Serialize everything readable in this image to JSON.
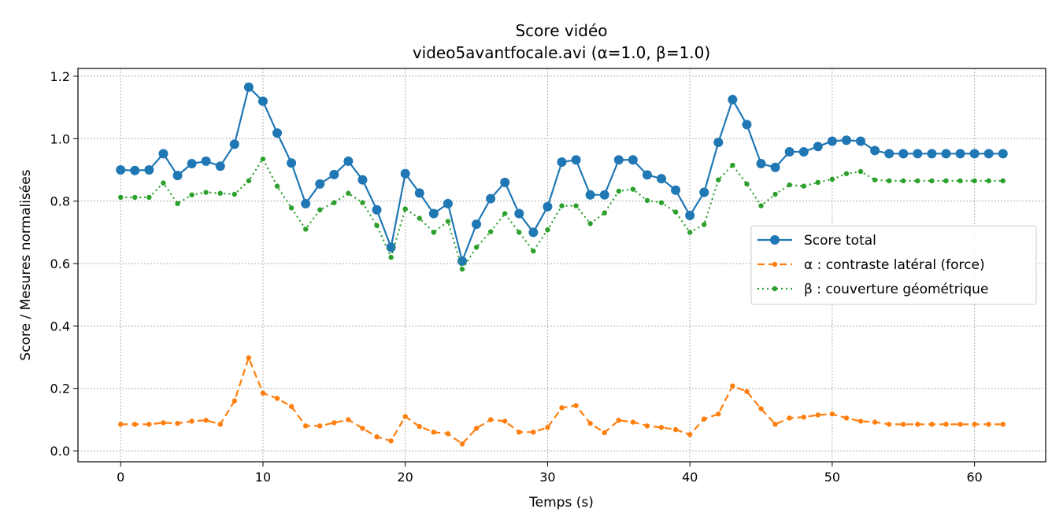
{
  "chart_data": {
    "type": "line",
    "title": "Score vidéo",
    "subtitle": "video5avantfocale.avi (α=1.0, β=1.0)",
    "xlabel": "Temps (s)",
    "ylabel": "Score / Mesures normalisées",
    "xlim": [
      -3,
      65
    ],
    "ylim": [
      -0.035,
      1.225
    ],
    "xticks": [
      0,
      10,
      20,
      30,
      40,
      50,
      60
    ],
    "yticks": [
      0.0,
      0.2,
      0.4,
      0.6,
      0.8,
      1.0,
      1.2
    ],
    "grid": true,
    "legend_position": "center-right",
    "x": [
      0,
      1,
      2,
      3,
      4,
      5,
      6,
      7,
      8,
      9,
      10,
      11,
      12,
      13,
      14,
      15,
      16,
      17,
      18,
      19,
      20,
      21,
      22,
      23,
      24,
      25,
      26,
      27,
      28,
      29,
      30,
      31,
      32,
      33,
      34,
      35,
      36,
      37,
      38,
      39,
      40,
      41,
      42,
      43,
      44,
      45,
      46,
      47,
      48,
      49,
      50,
      51,
      52,
      53,
      54,
      55,
      56,
      57,
      58,
      59,
      60,
      61,
      62
    ],
    "series": [
      {
        "name": "Score total",
        "color": "#1f77b4",
        "style": "solid",
        "marker": "large-circle",
        "values": [
          0.9,
          0.898,
          0.9,
          0.952,
          0.882,
          0.92,
          0.928,
          0.912,
          0.982,
          1.165,
          1.12,
          1.018,
          0.922,
          0.792,
          0.855,
          0.885,
          0.928,
          0.868,
          0.772,
          0.652,
          0.888,
          0.826,
          0.76,
          0.792,
          0.608,
          0.726,
          0.808,
          0.86,
          0.76,
          0.7,
          0.782,
          0.925,
          0.932,
          0.82,
          0.82,
          0.932,
          0.932,
          0.884,
          0.872,
          0.835,
          0.754,
          0.828,
          0.988,
          1.125,
          1.045,
          0.92,
          0.908,
          0.958,
          0.958,
          0.975,
          0.992,
          0.995,
          0.992,
          0.962,
          0.952,
          0.952,
          0.952,
          0.952,
          0.952,
          0.952,
          0.952,
          0.952,
          0.952
        ]
      },
      {
        "name": "α : contraste latéral (force)",
        "color": "#ff7f0e",
        "style": "dashed",
        "marker": "small-dot",
        "values": [
          0.085,
          0.085,
          0.085,
          0.09,
          0.088,
          0.095,
          0.098,
          0.085,
          0.16,
          0.298,
          0.185,
          0.168,
          0.142,
          0.08,
          0.08,
          0.09,
          0.1,
          0.072,
          0.045,
          0.032,
          0.11,
          0.078,
          0.06,
          0.055,
          0.022,
          0.072,
          0.1,
          0.095,
          0.06,
          0.06,
          0.075,
          0.138,
          0.145,
          0.088,
          0.058,
          0.098,
          0.092,
          0.08,
          0.075,
          0.068,
          0.052,
          0.102,
          0.118,
          0.208,
          0.19,
          0.135,
          0.085,
          0.105,
          0.108,
          0.115,
          0.118,
          0.105,
          0.095,
          0.092,
          0.085,
          0.085,
          0.085,
          0.085,
          0.085,
          0.085,
          0.085,
          0.085,
          0.085
        ]
      },
      {
        "name": "β : couverture géométrique",
        "color": "#2ca02c",
        "style": "dotted",
        "marker": "small-dot",
        "values": [
          0.812,
          0.812,
          0.812,
          0.858,
          0.792,
          0.82,
          0.828,
          0.825,
          0.822,
          0.865,
          0.935,
          0.848,
          0.778,
          0.71,
          0.772,
          0.795,
          0.825,
          0.795,
          0.722,
          0.62,
          0.775,
          0.745,
          0.7,
          0.735,
          0.582,
          0.652,
          0.702,
          0.76,
          0.7,
          0.64,
          0.708,
          0.785,
          0.785,
          0.728,
          0.762,
          0.832,
          0.838,
          0.802,
          0.795,
          0.765,
          0.7,
          0.725,
          0.868,
          0.915,
          0.855,
          0.785,
          0.822,
          0.852,
          0.848,
          0.86,
          0.87,
          0.888,
          0.895,
          0.868,
          0.865,
          0.865,
          0.865,
          0.865,
          0.865,
          0.865,
          0.865,
          0.865,
          0.865
        ]
      }
    ]
  }
}
